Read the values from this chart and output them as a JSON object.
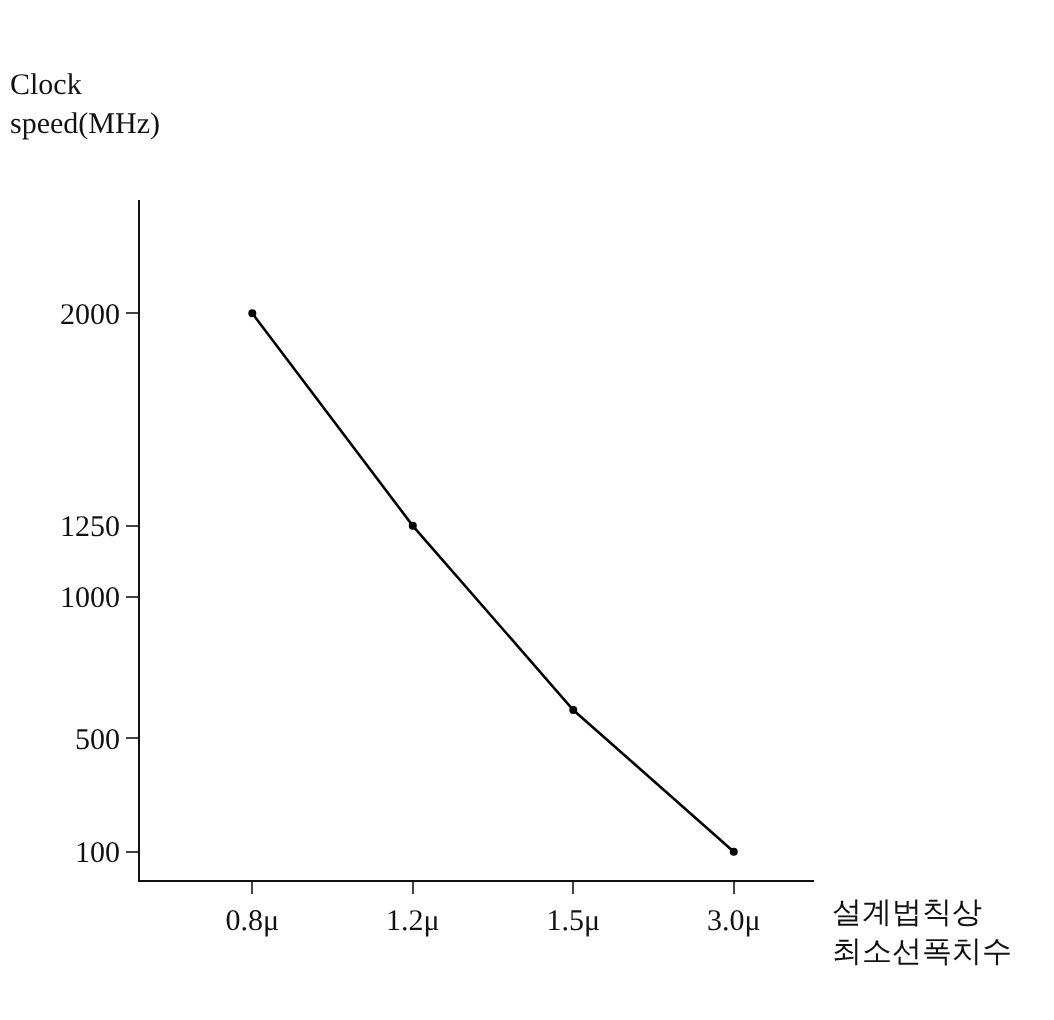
{
  "chart_data": {
    "type": "line",
    "xlabel": "설계법칙상\n최소선폭치수",
    "ylabel": "Clock\nspeed(MHz)",
    "categories": [
      "0.8μ",
      "1.2μ",
      "1.5μ",
      "3.0μ"
    ],
    "series": [
      {
        "color": "#000000",
        "values": [
          2000,
          1250,
          600,
          100
        ]
      }
    ],
    "ylim": [
      0,
      2400
    ],
    "yticks": [
      100,
      500,
      1000,
      1250,
      2000
    ],
    "grid": false,
    "marker": "circle",
    "line_style": "solid"
  }
}
